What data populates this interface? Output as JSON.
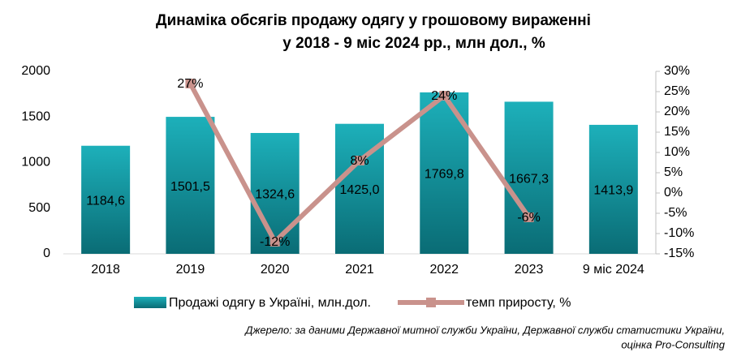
{
  "chart_data": {
    "type": "bar",
    "title": [
      "Динаміка обсягів продажу одягу у грошовому вираженні",
      "у 2018 - 9 міс 2024 рр., млн дол., %"
    ],
    "categories": [
      "2018",
      "2019",
      "2020",
      "2021",
      "2022",
      "2023",
      "9 міс 2024"
    ],
    "series": [
      {
        "name": "Продажі одягу в Україні, млн.дол.",
        "type": "bar",
        "color": "#14a0aa",
        "values": [
          1184.6,
          1501.5,
          1324.6,
          1425.0,
          1769.8,
          1667.3,
          1413.9
        ],
        "value_labels": [
          "1184,6",
          "1501,5",
          "1324,6",
          "1425,0",
          "1769,8",
          "1667,3",
          "1413,9"
        ]
      },
      {
        "name": "темп приросту, %",
        "type": "line",
        "axis": "y2",
        "color": "#c9928c",
        "values": [
          null,
          27,
          -12,
          8,
          24,
          -6,
          null
        ],
        "value_labels": [
          null,
          "27%",
          "-12%",
          "8%",
          "24%",
          "-6%",
          null
        ]
      }
    ],
    "ylim": [
      0,
      2000
    ],
    "yticks": [
      0,
      500,
      1000,
      1500,
      2000
    ],
    "y2lim": [
      -15,
      30
    ],
    "y2ticks": [
      {
        "value": -15,
        "label": "-15%"
      },
      {
        "value": -10,
        "label": "-10%"
      },
      {
        "value": -5,
        "label": "-5%"
      },
      {
        "value": 0,
        "label": "0%"
      },
      {
        "value": 5,
        "label": "5%"
      },
      {
        "value": 10,
        "label": "10%"
      },
      {
        "value": 15,
        "label": "15%"
      },
      {
        "value": 20,
        "label": "20%"
      },
      {
        "value": 25,
        "label": "25%"
      },
      {
        "value": 30,
        "label": "30%"
      }
    ],
    "source": [
      "Джерело: за даними Державної митної служби України,  Державної служби статистики України,",
      "оцінка Pro-Consulting"
    ]
  }
}
